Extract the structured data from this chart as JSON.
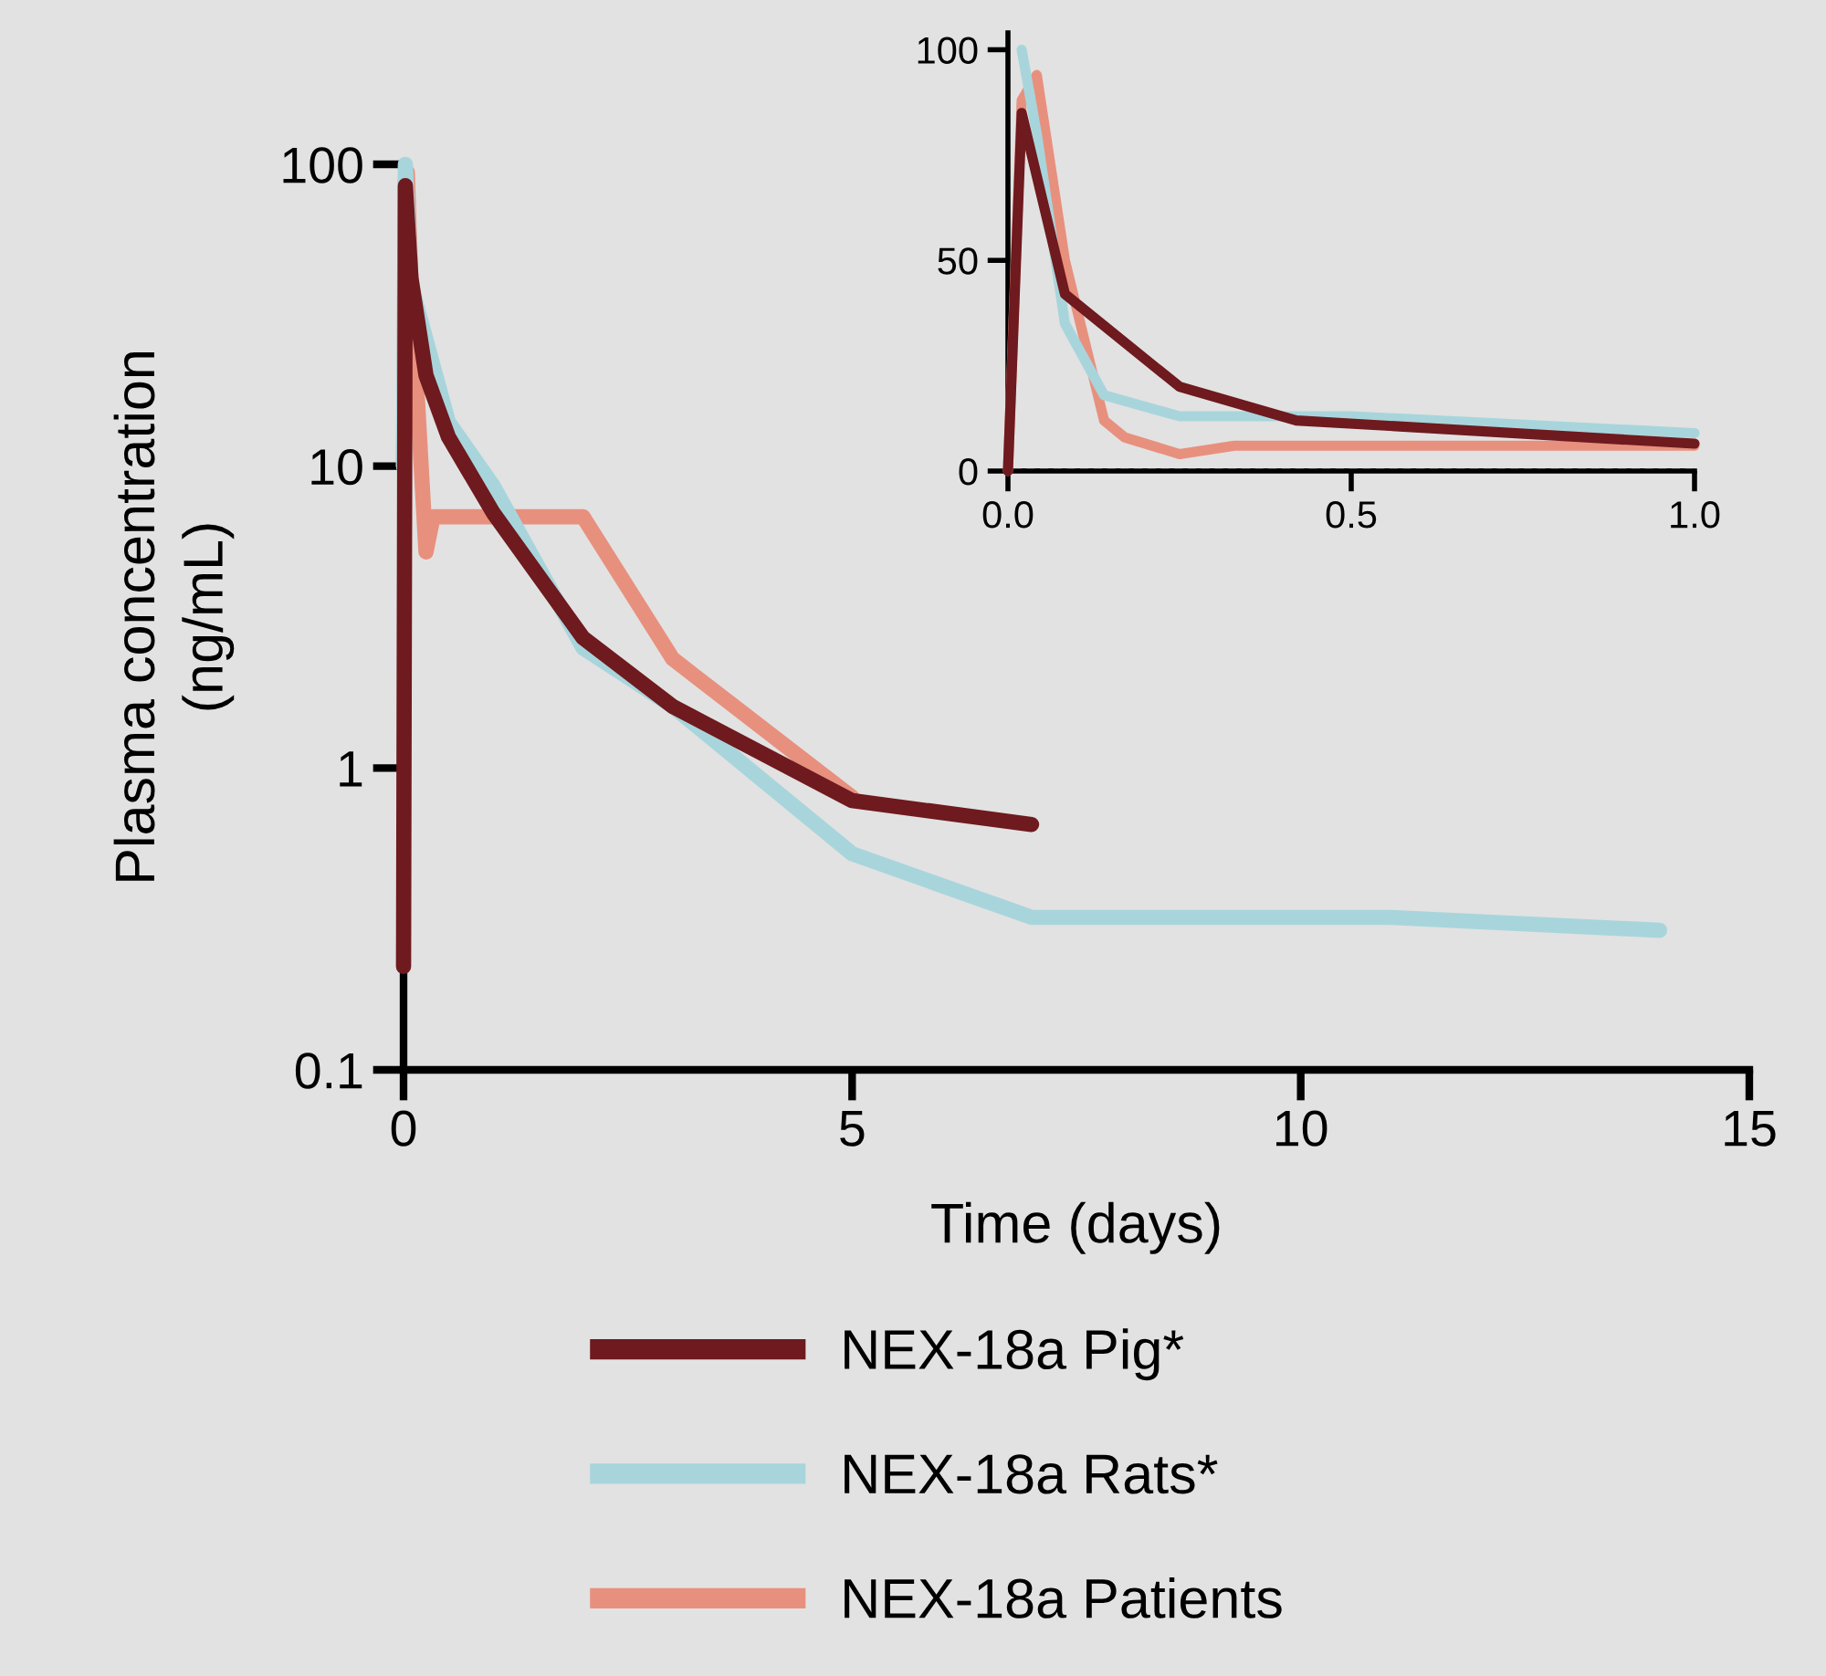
{
  "chart_data": [
    {
      "type": "line",
      "xlabel": "Time (days)",
      "ylabel": "Plasma concentration\n(ng/mL)",
      "log": "y",
      "xlim": [
        0,
        15
      ],
      "xticks": [
        0,
        5,
        10,
        15
      ],
      "ylim": [
        0.1,
        100
      ],
      "yticks": [
        0.1,
        1,
        10,
        100
      ],
      "legend": "bottom",
      "grid": false,
      "marker": "none",
      "line_style": "solid",
      "series": [
        {
          "name": "NEX-18a Pig*",
          "color": "#6e1a1e",
          "x": [
            0,
            0.02,
            0.083,
            0.25,
            0.5,
            1,
            2,
            3,
            5,
            7
          ],
          "values": [
            0.22,
            85,
            42,
            20,
            12.5,
            7,
            2.7,
            1.6,
            0.78,
            0.65
          ]
        },
        {
          "name": "NEX-18a Rats*",
          "color": "#a8d5dc",
          "x": [
            0,
            0.02,
            0.083,
            0.5,
            1,
            2,
            3,
            5,
            7,
            11,
            14
          ],
          "values": [
            10,
            100,
            40,
            14,
            8.6,
            2.5,
            1.6,
            0.52,
            0.32,
            0.32,
            0.29
          ]
        },
        {
          "name": "NEX-18a Patients",
          "color": "#e8907e",
          "x": [
            0,
            0.02,
            0.042,
            0.083,
            0.25,
            0.33,
            2,
            3,
            5
          ],
          "values": [
            10,
            88,
            94,
            40,
            5.2,
            6.8,
            6.8,
            2.3,
            0.8
          ]
        }
      ]
    },
    {
      "type": "line",
      "xlim": [
        0,
        1
      ],
      "xticks": [
        {
          "value": 0,
          "label": "0.0"
        },
        0.5,
        {
          "value": 1,
          "label": "1.0"
        }
      ],
      "ylim": [
        0,
        104
      ],
      "yticks": [
        0,
        50,
        100
      ],
      "grid": false,
      "marker": "none",
      "line_style": "solid",
      "ref_lines": [
        {
          "axis": "y",
          "value": 0,
          "color": "#000000",
          "line_style": "dotted"
        }
      ],
      "series": [
        {
          "color": "#6e1a1e",
          "x": [
            0,
            0.02,
            0.083,
            0.25,
            0.42,
            1
          ],
          "values": [
            0,
            85,
            42,
            20,
            12,
            6.5
          ]
        },
        {
          "color": "#a8d5dc",
          "x": [
            0.02,
            0.042,
            0.083,
            0.14,
            0.25,
            0.5,
            1
          ],
          "values": [
            100,
            80,
            35,
            18,
            13,
            13,
            9
          ]
        },
        {
          "color": "#e8907e",
          "x": [
            0,
            0.02,
            0.042,
            0.083,
            0.14,
            0.17,
            0.25,
            0.33,
            1
          ],
          "values": [
            0,
            88,
            94,
            50,
            12,
            8,
            4,
            6,
            6
          ]
        }
      ]
    }
  ]
}
